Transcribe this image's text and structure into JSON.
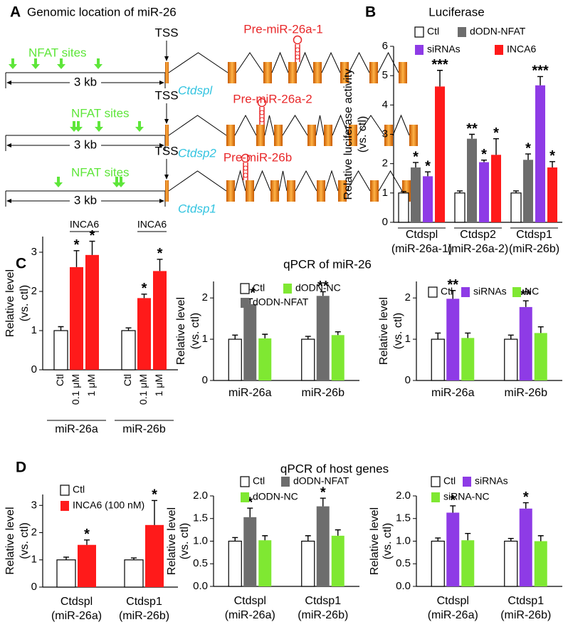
{
  "panel_labels": [
    "A",
    "B",
    "C",
    "D"
  ],
  "section_titles": [
    "qPCR of miR-26",
    "qPCR of host genes"
  ],
  "diagram": {
    "title": "Genomic location of miR-26",
    "rows": [
      {
        "nfat_label": "NFAT sites",
        "scale": "3 kb",
        "tss": "TSS",
        "gene": "Ctdspl",
        "precursor": "Pre-miR-26a-1"
      },
      {
        "nfat_label": "NFAT sites",
        "scale": "3 kb",
        "tss": "TSS",
        "gene": "Ctdsp2",
        "precursor": "Pre-miR-26a-2"
      },
      {
        "nfat_label": "NFAT sites",
        "scale": "3 kb",
        "tss": "TSS",
        "gene": "Ctdsp1",
        "precursor": "Pre-miR-26b"
      }
    ]
  },
  "chart_data": [
    {
      "type": "bar",
      "title": "Luciferase",
      "ylabel": [
        "Relative luciferase activity",
        "(vs. ctl)"
      ],
      "categories": [
        [
          "Ctdspl",
          "(miR-26a-1)"
        ],
        [
          "Ctdsp2",
          "(miR-26a-2)"
        ],
        [
          "Ctdsp1",
          "(miR-26b)"
        ]
      ],
      "category_brackets": true,
      "legend": true,
      "ylim": [
        0,
        6
      ],
      "yticks": [
        0,
        1,
        2,
        3,
        4,
        5,
        6
      ],
      "series": [
        {
          "name": "Ctl",
          "color": "#ffffff",
          "values": [
            1.0,
            1.0,
            1.0
          ],
          "errors": [
            0.05,
            0.07,
            0.07
          ],
          "significance": [
            null,
            null,
            null
          ]
        },
        {
          "name": "dODN-NFAT",
          "color": "#6d6d6d",
          "values": [
            1.87,
            2.85,
            2.13
          ],
          "errors": [
            0.17,
            0.15,
            0.2
          ],
          "significance": [
            "*",
            "**",
            "*"
          ]
        },
        {
          "name": "siRNAs",
          "color": "#8e3be6",
          "values": [
            1.57,
            2.05,
            4.67
          ],
          "errors": [
            0.15,
            0.07,
            0.3
          ],
          "significance": [
            "*",
            "*",
            "***"
          ]
        },
        {
          "name": "INCA6",
          "color": "#ff1a1a",
          "values": [
            4.63,
            2.3,
            1.87
          ],
          "errors": [
            0.55,
            0.55,
            0.2
          ],
          "significance": [
            "***",
            "*",
            "*"
          ]
        }
      ]
    },
    {
      "type": "bar",
      "ylabel": [
        "Relative level",
        "(vs. ctl)"
      ],
      "categories": [
        "miR-26a",
        "miR-26b"
      ],
      "category_brackets": true,
      "legend": false,
      "bracket_label": "INCA6",
      "ylim": [
        0,
        3.4
      ],
      "yticks": [
        0,
        1,
        2,
        3
      ],
      "series": [
        {
          "name": "Ctl",
          "color": "#ffffff",
          "values": [
            1.0,
            1.0
          ],
          "errors": [
            0.1,
            0.07
          ],
          "significance": [
            null,
            null
          ]
        },
        {
          "name": "0.1 μM",
          "color": "#ff1a1a",
          "values": [
            2.62,
            1.83
          ],
          "errors": [
            0.42,
            0.1
          ],
          "significance": [
            "*",
            "*"
          ]
        },
        {
          "name": "1 μM",
          "color": "#ff1a1a",
          "values": [
            2.93,
            2.52
          ],
          "errors": [
            0.35,
            0.3
          ],
          "significance": [
            "*",
            "*"
          ]
        }
      ]
    },
    {
      "type": "bar",
      "ylabel": [
        "Relative level",
        "(vs. ctl)"
      ],
      "categories": [
        "miR-26a",
        "miR-26b"
      ],
      "legend": true,
      "ylim": [
        0,
        2.4
      ],
      "yticks": [
        0,
        1,
        2
      ],
      "series": [
        {
          "name": "Ctl",
          "color": "#ffffff",
          "values": [
            1.0,
            1.0
          ],
          "errors": [
            0.1,
            0.07
          ],
          "significance": [
            null,
            null
          ]
        },
        {
          "name": "dODN-NFAT",
          "color": "#6d6d6d",
          "values": [
            1.85,
            2.05
          ],
          "errors": [
            0.13,
            0.1
          ],
          "significance": [
            "**",
            "**"
          ]
        },
        {
          "name": "dODN-NC",
          "color": "#7fe832",
          "values": [
            1.02,
            1.1
          ],
          "errors": [
            0.1,
            0.08
          ],
          "significance": [
            null,
            null
          ]
        }
      ]
    },
    {
      "type": "bar",
      "ylabel": [
        "Relative level",
        "(vs. ctl)"
      ],
      "categories": [
        "miR-26a",
        "miR-26b"
      ],
      "legend": true,
      "ylim": [
        0,
        2.4
      ],
      "yticks": [
        0,
        1,
        2
      ],
      "series": [
        {
          "name": "Ctl",
          "color": "#ffffff",
          "values": [
            1.0,
            1.0
          ],
          "errors": [
            0.15,
            0.1
          ],
          "significance": [
            null,
            null
          ]
        },
        {
          "name": "siRNAs",
          "color": "#8e3be6",
          "values": [
            1.98,
            1.78
          ],
          "errors": [
            0.2,
            0.15
          ],
          "significance": [
            "**",
            "**"
          ]
        },
        {
          "name": "NC",
          "color": "#7fe832",
          "values": [
            1.03,
            1.15
          ],
          "errors": [
            0.12,
            0.15
          ],
          "significance": [
            null,
            null
          ]
        }
      ]
    },
    {
      "type": "bar",
      "ylabel": [
        "Relative level",
        "(vs. ctl)"
      ],
      "categories": [
        [
          "Ctdspl",
          "(miR-26a)"
        ],
        [
          "Ctdsp1",
          "(miR-26b)"
        ]
      ],
      "legend": true,
      "ylim": [
        0,
        3.4
      ],
      "yticks": [
        0,
        1,
        2,
        3
      ],
      "series": [
        {
          "name": "Ctl",
          "color": "#ffffff",
          "values": [
            1.0,
            1.0
          ],
          "errors": [
            0.1,
            0.07
          ],
          "significance": [
            null,
            null
          ]
        },
        {
          "name": "INCA6 (100 nM)",
          "color": "#ff1a1a",
          "values": [
            1.55,
            2.28
          ],
          "errors": [
            0.18,
            0.9
          ],
          "significance": [
            "*",
            "*"
          ]
        }
      ]
    },
    {
      "type": "bar",
      "ylabel": [
        "Relative level",
        "(vs. ctl)"
      ],
      "categories": [
        [
          "Ctdspl",
          "(miR-26a)"
        ],
        [
          "Ctdsp1",
          "(miR-26b)"
        ]
      ],
      "legend": true,
      "ylim": [
        0,
        2
      ],
      "yticks": [
        {
          "value": 0,
          "label": "0.0"
        },
        {
          "value": 0.5,
          "label": "0.5"
        },
        {
          "value": 1,
          "label": "1.0"
        },
        {
          "value": 1.5,
          "label": "1.5"
        },
        {
          "value": 2,
          "label": "2.0"
        }
      ],
      "series": [
        {
          "name": "Ctl",
          "color": "#ffffff",
          "values": [
            1.0,
            1.0
          ],
          "errors": [
            0.08,
            0.12
          ],
          "significance": [
            null,
            null
          ]
        },
        {
          "name": "dODN-NFAT",
          "color": "#6d6d6d",
          "values": [
            1.53,
            1.77
          ],
          "errors": [
            0.2,
            0.18
          ],
          "significance": [
            "*",
            "*"
          ]
        },
        {
          "name": "dODN-NC",
          "color": "#7fe832",
          "values": [
            1.02,
            1.12
          ],
          "errors": [
            0.1,
            0.13
          ],
          "significance": [
            null,
            null
          ]
        }
      ]
    },
    {
      "type": "bar",
      "ylabel": [
        "Relative level",
        "(vs. ctl)"
      ],
      "categories": [
        [
          "Ctdspl",
          "(miR-26a)"
        ],
        [
          "Ctdsp1",
          "(miR-26b)"
        ]
      ],
      "legend": true,
      "ylim": [
        0,
        2
      ],
      "yticks": [
        {
          "value": 0,
          "label": "0.0"
        },
        {
          "value": 0.5,
          "label": "0.5"
        },
        {
          "value": 1,
          "label": "1.0"
        },
        {
          "value": 1.5,
          "label": "1.5"
        },
        {
          "value": 2,
          "label": "2.0"
        }
      ],
      "series": [
        {
          "name": "Ctl",
          "color": "#ffffff",
          "values": [
            1.0,
            1.0
          ],
          "errors": [
            0.07,
            0.06
          ],
          "significance": [
            null,
            null
          ]
        },
        {
          "name": "siRNAs",
          "color": "#8e3be6",
          "values": [
            1.63,
            1.72
          ],
          "errors": [
            0.15,
            0.13
          ],
          "significance": [
            "*",
            "*"
          ]
        },
        {
          "name": "siRNA-NC",
          "color": "#7fe832",
          "values": [
            1.02,
            1.0
          ],
          "errors": [
            0.15,
            0.12
          ],
          "significance": [
            null,
            null
          ]
        }
      ]
    }
  ]
}
